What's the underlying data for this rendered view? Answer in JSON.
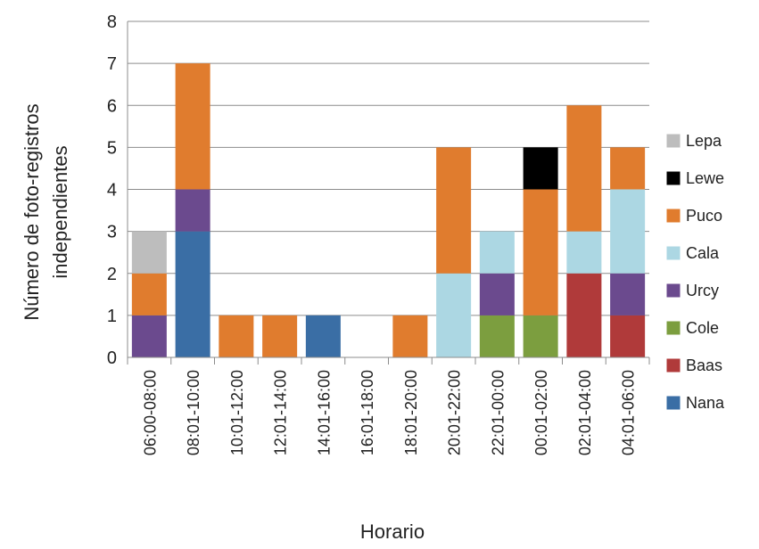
{
  "chart_data": {
    "type": "bar",
    "stacked": true,
    "title": "",
    "xlabel": "Horario",
    "ylabel_lines": [
      "Número de foto-registros",
      "independientes"
    ],
    "ylim": [
      0,
      8
    ],
    "yticks": [
      0,
      1,
      2,
      3,
      4,
      5,
      6,
      7,
      8
    ],
    "grid": true,
    "legend_position": "right",
    "categories": [
      "06:00-08:00",
      "08:01-10:00",
      "10:01-12:00",
      "12:01-14:00",
      "14:01-16:00",
      "16:01-18:00",
      "18:01-20:00",
      "20:01-22:00",
      "22:01-00:00",
      "00:01-02:00",
      "02:01-04:00",
      "04:01-06:00"
    ],
    "series": [
      {
        "name": "Nana",
        "color": "#3a6ea5",
        "values": [
          0,
          3,
          0,
          0,
          1,
          0,
          0,
          0,
          0,
          0,
          0,
          0
        ]
      },
      {
        "name": "Baas",
        "color": "#b03a3a",
        "values": [
          0,
          0,
          0,
          0,
          0,
          0,
          0,
          0,
          0,
          0,
          2,
          1
        ]
      },
      {
        "name": "Cole",
        "color": "#7c9e3f",
        "values": [
          0,
          0,
          0,
          0,
          0,
          0,
          0,
          0,
          1,
          1,
          0,
          0
        ]
      },
      {
        "name": "Urcy",
        "color": "#6b4a8e",
        "values": [
          1,
          1,
          0,
          0,
          0,
          0,
          0,
          0,
          1,
          0,
          0,
          1
        ]
      },
      {
        "name": "Cala",
        "color": "#acd7e3",
        "values": [
          0,
          0,
          0,
          0,
          0,
          0,
          0,
          2,
          1,
          0,
          1,
          2
        ]
      },
      {
        "name": "Puco",
        "color": "#e07c2e",
        "values": [
          1,
          3,
          1,
          1,
          0,
          0,
          1,
          3,
          0,
          3,
          3,
          1
        ]
      },
      {
        "name": "Lewe",
        "color": "#000000",
        "values": [
          0,
          0,
          0,
          0,
          0,
          0,
          0,
          0,
          0,
          1,
          0,
          0
        ]
      },
      {
        "name": "Lepa",
        "color": "#bdbdbd",
        "values": [
          1,
          0,
          0,
          0,
          0,
          0,
          0,
          0,
          0,
          0,
          0,
          0
        ]
      }
    ],
    "legend_order": [
      "Lepa",
      "Lewe",
      "Puco",
      "Cala",
      "Urcy",
      "Cole",
      "Baas",
      "Nana"
    ]
  }
}
